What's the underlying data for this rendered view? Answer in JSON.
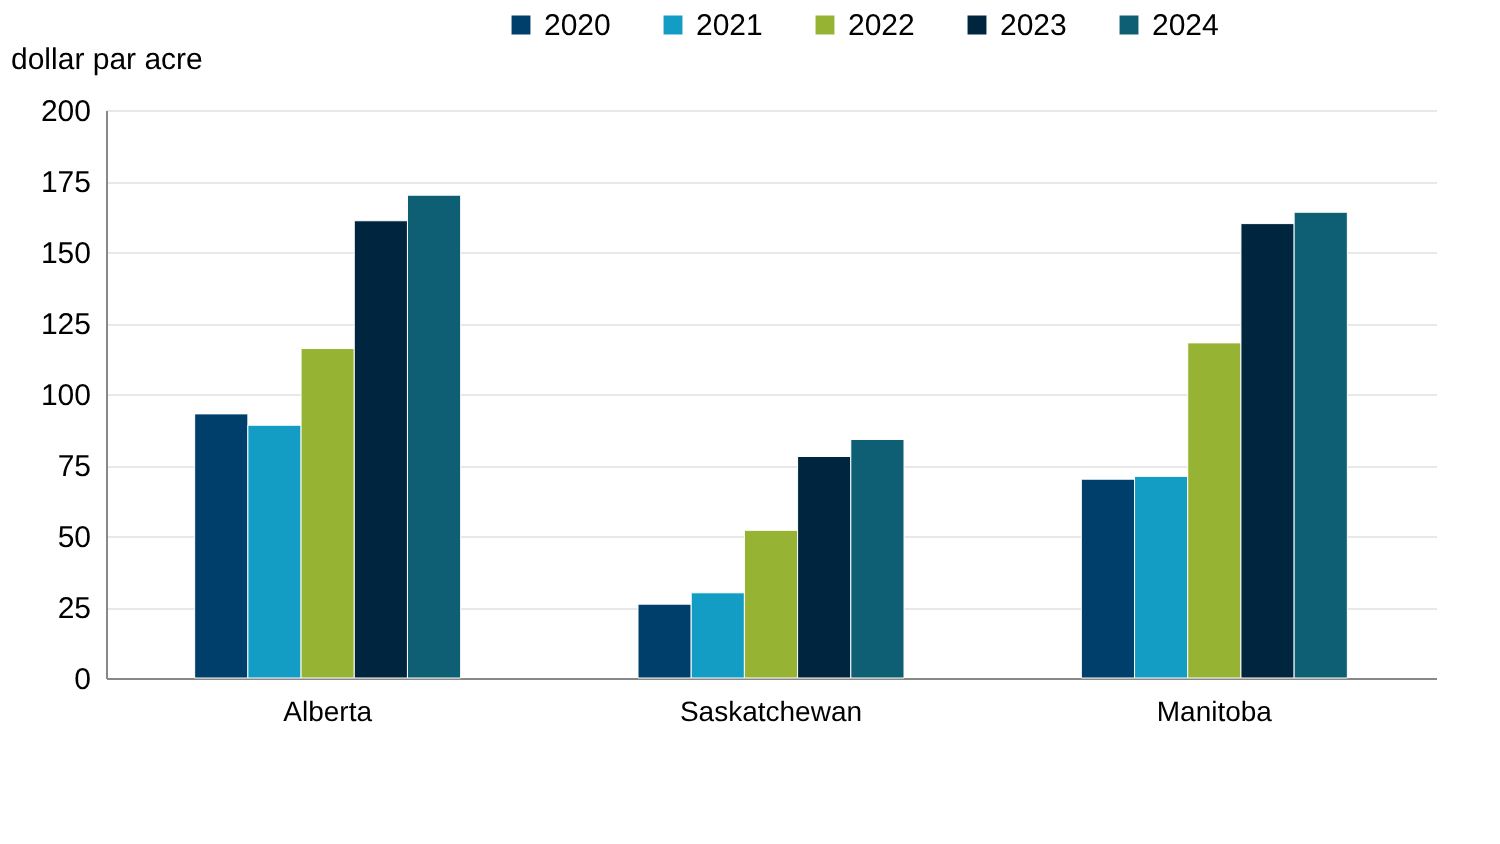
{
  "chart_data": {
    "type": "bar",
    "ylabel": "dollar par acre",
    "categories": [
      "Alberta",
      "Saskatchewan",
      "Manitoba"
    ],
    "series": [
      {
        "name": "2020",
        "color": "#003f6b",
        "values": [
          93,
          26,
          70
        ]
      },
      {
        "name": "2021",
        "color": "#139dc4",
        "values": [
          89,
          30,
          71
        ]
      },
      {
        "name": "2022",
        "color": "#97b334",
        "values": [
          116,
          52,
          118
        ]
      },
      {
        "name": "2023",
        "color": "#00263f",
        "values": [
          161,
          78,
          160
        ]
      },
      {
        "name": "2024",
        "color": "#0e5f73",
        "values": [
          170,
          84,
          164
        ]
      }
    ],
    "ylim": [
      0,
      200
    ],
    "yticks": [
      0,
      25,
      50,
      75,
      100,
      125,
      150,
      175,
      200
    ],
    "grid": "y",
    "legend": "top"
  }
}
